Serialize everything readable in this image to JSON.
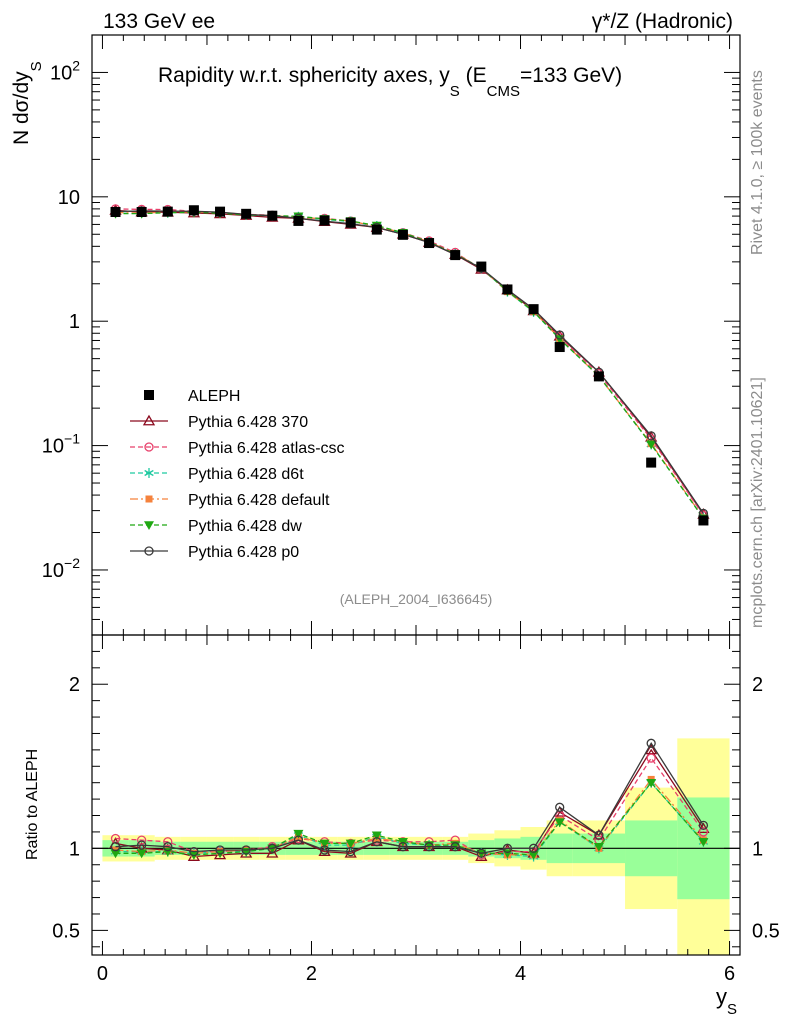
{
  "header": {
    "left": "133 GeV ee",
    "right": "γ*/Z (Hadronic)"
  },
  "side_labels": {
    "rivet": "Rivet 4.1.0, ≥ 100k events",
    "mcplots": "mcplots.cern.ch [arXiv:2401.10621]"
  },
  "chart_data": {
    "type": "line",
    "title": "Rapidity w.r.t. sphericity axes, y_S (E_CMS=133 GeV)",
    "title_parts": {
      "main": "Rapidity w.r.t. sphericity axes, y",
      "sub1": "S",
      "mid": " (E",
      "sub2": "CMS",
      "end": "=133 GeV)"
    },
    "analysis_id": "(ALEPH_2004_I636645)",
    "xlabel": "y_S",
    "xlabel_main": "y",
    "xlabel_sub": "S",
    "ylabel": "N dσ/dy_S",
    "ylabel_main": "N  dσ/dy",
    "ylabel_sub": "S",
    "ratio_ylabel": "Ratio to ALEPH",
    "xlim": [
      -0.1,
      6.1
    ],
    "ylim": [
      0.003,
      200
    ],
    "yscale": "log",
    "ratio_ylim": [
      0.35,
      2.3
    ],
    "x_ticks": [
      "0",
      "2",
      "4",
      "6"
    ],
    "y_ticks": [
      "10^-2",
      "10^-1",
      "1",
      "10",
      "10^2"
    ],
    "ratio_ticks": [
      "0.5",
      "1",
      "2"
    ],
    "x": [
      0.125,
      0.375,
      0.625,
      0.875,
      1.125,
      1.375,
      1.625,
      1.875,
      2.125,
      2.375,
      2.625,
      2.875,
      3.125,
      3.375,
      3.625,
      3.875,
      4.125,
      4.375,
      4.75,
      5.25,
      5.75
    ],
    "bin_edges": [
      0,
      0.25,
      0.5,
      0.75,
      1.0,
      1.25,
      1.5,
      1.75,
      2.0,
      2.25,
      2.5,
      2.75,
      3.0,
      3.25,
      3.5,
      3.75,
      4.0,
      4.25,
      4.5,
      5.0,
      5.5,
      6.0
    ],
    "band_inner": [
      0.05,
      0.05,
      0.04,
      0.04,
      0.04,
      0.04,
      0.04,
      0.04,
      0.04,
      0.04,
      0.04,
      0.04,
      0.04,
      0.04,
      0.05,
      0.06,
      0.07,
      0.09,
      0.09,
      0.17,
      0.31
    ],
    "band_outer": [
      0.08,
      0.08,
      0.07,
      0.07,
      0.07,
      0.07,
      0.07,
      0.07,
      0.07,
      0.07,
      0.07,
      0.07,
      0.07,
      0.07,
      0.09,
      0.11,
      0.13,
      0.17,
      0.17,
      0.37,
      0.67
    ],
    "data": {
      "name": "ALEPH",
      "values": [
        7.55,
        7.55,
        7.6,
        7.8,
        7.6,
        7.3,
        7.05,
        6.4,
        6.45,
        6.2,
        5.45,
        4.95,
        4.25,
        3.4,
        2.75,
        1.8,
        1.25,
        0.62,
        0.36,
        0.073,
        0.025
      ]
    },
    "series": [
      {
        "name": "Pythia 6.428 370",
        "color": "#8b0a1e",
        "style": "solid",
        "marker": "triangle-open",
        "ratio": [
          1.03,
          1.0,
          0.99,
          0.95,
          0.96,
          0.97,
          0.97,
          1.05,
          0.98,
          0.97,
          1.04,
          1.01,
          1.01,
          1.01,
          0.95,
          0.99,
          0.97,
          1.22,
          1.08,
          1.6,
          1.12
        ]
      },
      {
        "name": "Pythia 6.428 atlas-csc",
        "color": "#e8406b",
        "style": "dashed",
        "marker": "circle-open",
        "ratio": [
          1.06,
          1.05,
          1.04,
          0.98,
          0.98,
          0.99,
          1.01,
          1.06,
          1.04,
          1.03,
          1.05,
          1.04,
          1.04,
          1.05,
          0.96,
          0.98,
          0.98,
          1.2,
          1.05,
          1.55,
          1.1
        ]
      },
      {
        "name": "Pythia 6.428 d6t",
        "color": "#1fc9a0",
        "style": "dashed",
        "marker": "star",
        "ratio": [
          0.98,
          0.98,
          0.98,
          0.97,
          0.98,
          0.98,
          1.0,
          1.08,
          1.02,
          1.02,
          1.07,
          1.03,
          1.02,
          1.02,
          0.97,
          0.96,
          0.95,
          1.16,
          1.0,
          1.4,
          1.04
        ]
      },
      {
        "name": "Pythia 6.428 default",
        "color": "#f5823c",
        "style": "dashdot",
        "marker": "square",
        "ratio": [
          0.99,
          0.98,
          0.99,
          0.97,
          0.98,
          0.99,
          1.0,
          1.07,
          1.03,
          1.03,
          1.06,
          1.04,
          1.02,
          1.03,
          0.97,
          0.96,
          0.96,
          1.17,
          1.0,
          1.42,
          1.05
        ]
      },
      {
        "name": "Pythia 6.428 dw",
        "color": "#1fa812",
        "style": "dashed",
        "marker": "triangle-down",
        "ratio": [
          0.97,
          0.97,
          0.98,
          0.96,
          0.97,
          0.98,
          1.0,
          1.09,
          1.03,
          1.03,
          1.08,
          1.04,
          1.02,
          1.02,
          0.97,
          0.97,
          0.96,
          1.16,
          1.01,
          1.4,
          1.04
        ]
      },
      {
        "name": "Pythia 6.428 p0",
        "color": "#3a3a3a",
        "style": "solid",
        "marker": "circle-open",
        "ratio": [
          1.01,
          1.02,
          1.01,
          0.98,
          0.99,
          0.99,
          1.0,
          1.05,
          0.99,
          0.98,
          1.04,
          1.01,
          1.01,
          1.01,
          0.97,
          1.0,
          1.0,
          1.25,
          1.08,
          1.64,
          1.14
        ]
      }
    ]
  }
}
